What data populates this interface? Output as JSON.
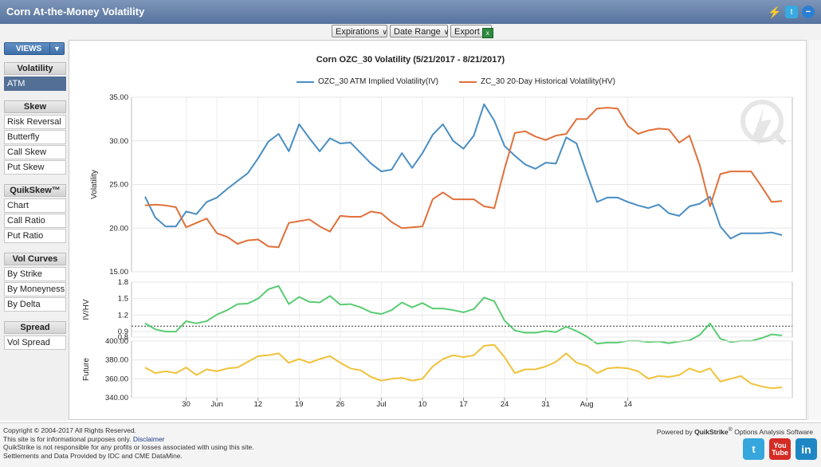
{
  "window": {
    "title": "Corn At-the-Money Volatility"
  },
  "toolbar": {
    "expirations": "Expirations",
    "date_range": "Date Range",
    "export": "Export"
  },
  "sidebar": {
    "views_label": "VIEWS",
    "sections": [
      {
        "header": "Volatility",
        "items": [
          "ATM"
        ]
      },
      {
        "header": "Skew",
        "items": [
          "Risk Reversal",
          "Butterfly",
          "Call Skew",
          "Put Skew"
        ]
      },
      {
        "header": "QuikSkew™",
        "items": [
          "Chart",
          "Call Ratio",
          "Put Ratio"
        ]
      },
      {
        "header": "Vol Curves",
        "items": [
          "By Strike",
          "By Moneyness",
          "By Delta"
        ]
      },
      {
        "header": "Spread",
        "items": [
          "Vol Spread"
        ]
      }
    ],
    "active_item": "ATM"
  },
  "chart_data": {
    "type": "line",
    "title": "Corn OZC_30 Volatility (5/21/2017 - 8/21/2017)",
    "x_ticks": [
      "30",
      "Jun",
      "12",
      "19",
      "26",
      "Jul",
      "10",
      "17",
      "24",
      "31",
      "Aug",
      "14"
    ],
    "x_tick_index": [
      4,
      7,
      11,
      15,
      19,
      23,
      27,
      31,
      35,
      39,
      43,
      47
    ],
    "legend_position": "top-center",
    "colors": {
      "iv": "#4a8ec2",
      "hv": "#e0703a",
      "ratio": "#59cc73",
      "future": "#f0c23a"
    },
    "panels": [
      {
        "ylabel": "Volatility",
        "ylim": [
          15,
          35
        ],
        "yticks": [
          "15.00",
          "20.00",
          "25.00",
          "30.00",
          "35.00"
        ],
        "series": [
          {
            "name": "OZC_30 ATM Implied Volatility(IV)",
            "color": "#4a8ec2",
            "values": [
              23.6,
              21.2,
              20.2,
              20.2,
              21.9,
              21.6,
              23.0,
              23.5,
              24.5,
              25.4,
              26.3,
              28.0,
              29.9,
              30.8,
              28.8,
              31.9,
              30.3,
              28.8,
              30.3,
              29.7,
              29.8,
              28.6,
              27.4,
              26.5,
              26.7,
              28.6,
              26.9,
              28.6,
              30.7,
              31.9,
              30.0,
              29.1,
              30.6,
              34.2,
              32.3,
              29.4,
              28.3,
              27.3,
              26.8,
              27.5,
              27.4,
              30.4,
              29.7,
              26.3,
              23.0,
              23.5,
              23.5,
              23.0,
              22.6,
              22.3,
              22.7,
              21.7,
              21.4,
              22.5,
              22.8,
              23.6,
              20.2,
              18.8,
              19.4,
              19.4,
              19.4,
              19.5,
              19.2
            ]
          },
          {
            "name": "ZC_30 20-Day Historical Volatility(HV)",
            "color": "#e0703a",
            "values": [
              22.6,
              22.7,
              22.6,
              22.4,
              20.1,
              20.6,
              21.1,
              19.4,
              19.0,
              18.2,
              18.6,
              18.7,
              17.9,
              17.8,
              20.6,
              20.8,
              21.0,
              20.2,
              19.6,
              21.4,
              21.3,
              21.3,
              21.9,
              21.7,
              20.7,
              20.0,
              20.1,
              20.2,
              23.3,
              24.1,
              23.3,
              23.3,
              23.3,
              22.5,
              22.3,
              26.8,
              30.9,
              31.1,
              30.5,
              30.1,
              30.6,
              30.8,
              32.5,
              32.5,
              33.7,
              33.8,
              33.7,
              31.7,
              30.8,
              31.2,
              31.4,
              31.3,
              29.8,
              30.6,
              27.2,
              22.5,
              26.2,
              26.5,
              26.5,
              26.5,
              24.8,
              23.0,
              23.1
            ]
          }
        ]
      },
      {
        "ylabel": "IV/HV",
        "ylim": [
          0.8,
          1.8
        ],
        "yticks": [
          "0.8",
          "0.9",
          "1.2",
          "1.5",
          "1.8"
        ],
        "reference_line": 1.0,
        "series": [
          {
            "name": "IV/HV",
            "color": "#59cc73",
            "values": [
              1.05,
              0.94,
              0.9,
              0.9,
              1.09,
              1.05,
              1.09,
              1.21,
              1.29,
              1.4,
              1.41,
              1.5,
              1.67,
              1.73,
              1.4,
              1.53,
              1.44,
              1.43,
              1.55,
              1.39,
              1.4,
              1.34,
              1.25,
              1.22,
              1.29,
              1.43,
              1.34,
              1.42,
              1.32,
              1.32,
              1.29,
              1.25,
              1.31,
              1.52,
              1.45,
              1.1,
              0.92,
              0.88,
              0.88,
              0.91,
              0.89,
              0.99,
              0.91,
              0.81,
              0.68,
              0.7,
              0.7,
              0.73,
              0.73,
              0.71,
              0.72,
              0.69,
              0.72,
              0.74,
              0.84,
              1.05,
              0.77,
              0.71,
              0.73,
              0.73,
              0.78,
              0.85,
              0.83
            ]
          }
        ]
      },
      {
        "ylabel": "Future",
        "ylim": [
          340,
          400
        ],
        "yticks": [
          "340.00",
          "360.00",
          "380.00",
          "400.00"
        ],
        "series": [
          {
            "name": "Future",
            "color": "#f0c23a",
            "values": [
              372,
              366,
              368,
              366,
              372,
              364,
              370,
              368,
              371,
              372,
              378,
              384,
              385,
              387,
              377,
              381,
              377,
              381,
              384,
              377,
              371,
              369,
              362,
              358,
              360,
              361,
              358,
              360,
              373,
              381,
              385,
              383,
              385,
              395,
              396,
              383,
              366,
              370,
              370,
              373,
              378,
              387,
              377,
              374,
              366,
              371,
              372,
              371,
              368,
              360,
              363,
              362,
              364,
              371,
              367,
              371,
              357,
              360,
              363,
              355,
              352,
              350,
              351
            ]
          }
        ]
      }
    ]
  },
  "footer": {
    "copyright": "Copyright © 2004-2017 All Rights Reserved.",
    "info_prefix": "This site is for informational purposes only.",
    "disclaimer_link": "Disclaimer",
    "liability": "QuikStrike is not responsible for any profits or losses associated with using this site.",
    "settlements": "Settlements and Data Provided by IDC and CME DataMine.",
    "powered_prefix": "Powered by",
    "powered_brand": "QuikStrike",
    "powered_suffix": "Options Analysis Software",
    "social": {
      "twitter": "t",
      "youtube_top": "You",
      "youtube_bottom": "Tube",
      "linkedin": "in"
    }
  }
}
